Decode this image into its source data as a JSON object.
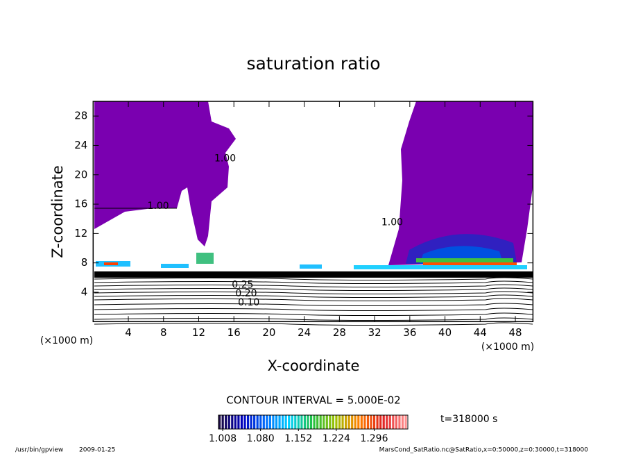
{
  "chart_data": {
    "type": "contour",
    "title": "saturation ratio",
    "x_label": "X-coordinate",
    "y_label": "Z-coordinate",
    "x_unit": "(×1000 m)",
    "y_unit": "(×1000 m)",
    "xlim": [
      0,
      50
    ],
    "ylim": [
      0,
      30
    ],
    "xticks": [
      4,
      8,
      12,
      16,
      20,
      24,
      28,
      32,
      36,
      40,
      44,
      48
    ],
    "yticks": [
      4,
      8,
      12,
      16,
      20,
      24,
      28
    ],
    "contour_labels": [
      {
        "value": 1.0,
        "label": "1.00",
        "x": 7.4,
        "y": 15.7
      },
      {
        "value": 1.0,
        "label": "1.00",
        "x": 15.0,
        "y": 22.2
      },
      {
        "value": 1.0,
        "label": "1.00",
        "x": 34.0,
        "y": 13.5
      },
      {
        "value": 0.25,
        "label": "0.25",
        "x": 17.0,
        "y": 5.0
      },
      {
        "value": 0.2,
        "label": "0.20",
        "x": 17.4,
        "y": 3.8
      },
      {
        "value": 0.1,
        "label": "0.10",
        "x": 17.7,
        "y": 2.6
      }
    ],
    "contour_interval_label": "CONTOUR INTERVAL = 5.000E-02",
    "time_label": "t=318000 s",
    "colorbar": {
      "clim": [
        1.0,
        1.36
      ],
      "colors": [
        "#1a0a40",
        "#0000c0",
        "#0070ff",
        "#00d0ff",
        "#20c040",
        "#a0c000",
        "#ff8000",
        "#e02020",
        "#ff9090"
      ],
      "ticks": [
        1.008,
        {
          "value": 1.08,
          "label": "1.080"
        },
        1.152,
        1.224,
        1.296
      ]
    },
    "footer": {
      "program": "/usr/bin/gpview",
      "date": "2009-01-25",
      "source": "MarsCond_SatRatio.nc@SatRatio,x=0:50000,z=0:30000,t=318000"
    }
  }
}
